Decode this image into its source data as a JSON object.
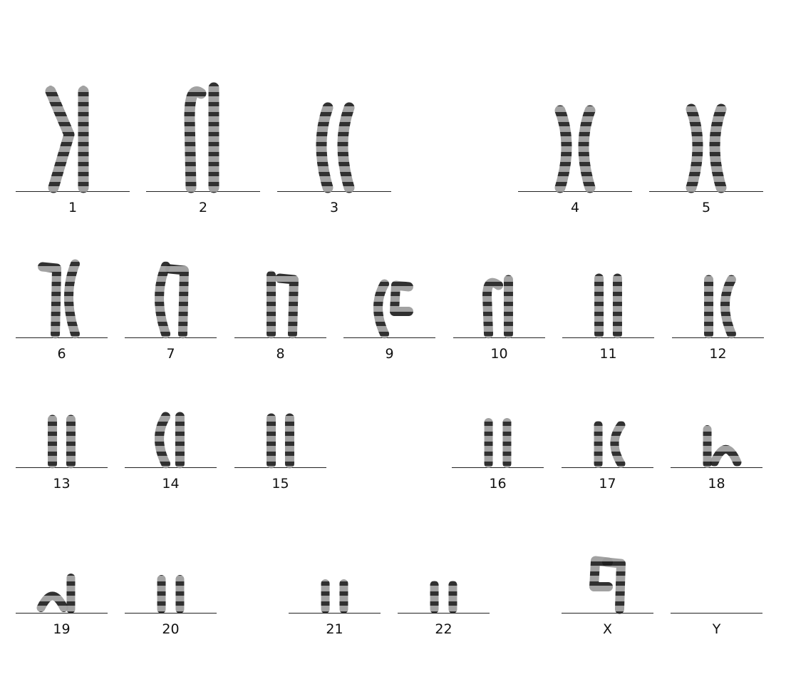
{
  "karyotype": {
    "chromosomes": [
      {
        "label": "1",
        "arms": [
          {
            "shape": "bent"
          },
          {
            "shape": "straight"
          }
        ]
      },
      {
        "label": "2",
        "arms": [
          {
            "shape": "curved-top"
          },
          {
            "shape": "straight"
          }
        ]
      },
      {
        "label": "3",
        "arms": [
          {
            "shape": "bow-left"
          },
          {
            "shape": "bow-left"
          }
        ]
      },
      {
        "label": "4",
        "arms": [
          {
            "shape": "bow-right"
          },
          {
            "shape": "bow-left"
          }
        ]
      },
      {
        "label": "5",
        "arms": [
          {
            "shape": "bow-right"
          },
          {
            "shape": "bow-left"
          }
        ]
      },
      {
        "label": "6",
        "arms": [
          {
            "shape": "hook-top"
          },
          {
            "shape": "bow-left"
          }
        ]
      },
      {
        "label": "7",
        "arms": [
          {
            "shape": "bow-left"
          },
          {
            "shape": "hook-top"
          }
        ]
      },
      {
        "label": "8",
        "arms": [
          {
            "shape": "straight"
          },
          {
            "shape": "hook-top"
          }
        ]
      },
      {
        "label": "9",
        "arms": [
          {
            "shape": "bow-left"
          },
          {
            "shape": "c-shape"
          }
        ]
      },
      {
        "label": "10",
        "arms": [
          {
            "shape": "curved-top"
          },
          {
            "shape": "straight"
          }
        ]
      },
      {
        "label": "11",
        "arms": [
          {
            "shape": "straight"
          },
          {
            "shape": "straight"
          }
        ]
      },
      {
        "label": "12",
        "arms": [
          {
            "shape": "straight"
          },
          {
            "shape": "bow-left"
          }
        ]
      },
      {
        "label": "13",
        "arms": [
          {
            "shape": "straight"
          },
          {
            "shape": "straight"
          }
        ]
      },
      {
        "label": "14",
        "arms": [
          {
            "shape": "bow-left"
          },
          {
            "shape": "straight"
          }
        ]
      },
      {
        "label": "15",
        "arms": [
          {
            "shape": "straight"
          },
          {
            "shape": "straight"
          }
        ]
      },
      {
        "label": "16",
        "arms": [
          {
            "shape": "straight"
          },
          {
            "shape": "straight"
          }
        ]
      },
      {
        "label": "17",
        "arms": [
          {
            "shape": "straight"
          },
          {
            "shape": "bow-left"
          }
        ]
      },
      {
        "label": "18",
        "arms": [
          {
            "shape": "straight"
          },
          {
            "shape": "lying"
          }
        ]
      },
      {
        "label": "19",
        "arms": [
          {
            "shape": "lying"
          },
          {
            "shape": "straight"
          }
        ]
      },
      {
        "label": "20",
        "arms": [
          {
            "shape": "straight"
          },
          {
            "shape": "straight"
          }
        ]
      },
      {
        "label": "21",
        "arms": [
          {
            "shape": "straight"
          },
          {
            "shape": "straight"
          }
        ]
      },
      {
        "label": "22",
        "arms": [
          {
            "shape": "straight"
          },
          {
            "shape": "straight"
          }
        ]
      },
      {
        "label": "X",
        "arms": [
          {
            "shape": "c-shape"
          },
          {
            "shape": "hook-top"
          }
        ]
      },
      {
        "label": "Y",
        "arms": []
      }
    ],
    "colors": {
      "ink": "#222222",
      "band_dark": "#1e1e1e",
      "band_light": "#9a9a9a"
    }
  }
}
